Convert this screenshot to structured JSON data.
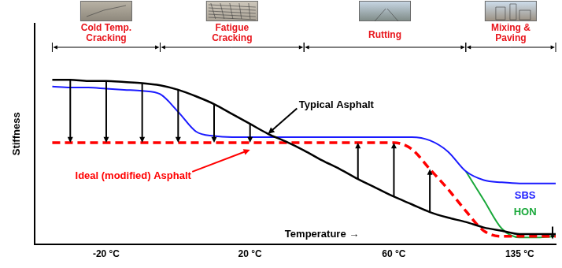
{
  "chart_data": {
    "type": "line",
    "x_label": "Temperature →",
    "y_label": "Stiffness",
    "categories": [
      null,
      null,
      null,
      null,
      "-20 °C",
      null,
      null,
      null,
      null,
      null,
      null,
      null,
      "20 °C",
      null,
      null,
      null,
      null,
      null,
      null,
      null,
      "60 °C",
      null,
      null,
      null,
      null,
      null,
      null,
      "135 °C",
      null,
      null
    ],
    "ylim": [
      0,
      10
    ],
    "tick_labels": "x",
    "grid": false,
    "regions": [
      {
        "label": "Cold Temp. Cracking",
        "from": 1,
        "to": 7
      },
      {
        "label": "Fatigue Cracking",
        "from": 7,
        "to": 15
      },
      {
        "label": "Rutting",
        "from": 15,
        "to": 24
      },
      {
        "label": "Mixing & Paving",
        "from": 24,
        "to": 29
      }
    ],
    "series": [
      {
        "name": "Typical Asphalt",
        "color": "#000000",
        "line_style": "solid",
        "marker": "none",
        "values": [
          null,
          7.45,
          7.45,
          7.4,
          7.4,
          7.35,
          7.3,
          7.2,
          7.0,
          6.7,
          6.35,
          5.9,
          5.45,
          5.0,
          4.65,
          4.25,
          3.8,
          3.4,
          2.95,
          2.55,
          2.15,
          1.8,
          1.45,
          1.2,
          1.0,
          0.75,
          0.6,
          0.45,
          0.45,
          0.45
        ]
      },
      {
        "name": "Ideal (modified) Asphalt",
        "color": "#ff0000",
        "line_style": "dashed",
        "marker": "none",
        "values": [
          null,
          4.6,
          4.6,
          4.6,
          4.6,
          4.6,
          4.6,
          4.6,
          4.6,
          4.6,
          4.6,
          4.6,
          4.6,
          4.6,
          4.6,
          4.6,
          4.6,
          4.6,
          4.6,
          4.6,
          4.6,
          4.3,
          3.4,
          2.5,
          1.5,
          0.6,
          0.35,
          0.35,
          0.35,
          0.35
        ]
      },
      {
        "name": "SBS",
        "color": "#1a1aff",
        "line_style": "solid",
        "marker": "none",
        "values": [
          null,
          7.15,
          7.1,
          7.1,
          7.05,
          7.0,
          6.95,
          6.8,
          6.0,
          5.1,
          4.9,
          4.85,
          4.85,
          4.85,
          4.85,
          4.85,
          4.85,
          4.85,
          4.85,
          4.85,
          4.85,
          4.85,
          4.7,
          4.2,
          3.3,
          2.9,
          2.8,
          2.75,
          2.75,
          2.75
        ]
      },
      {
        "name": "HON",
        "color": "#19a83a",
        "line_style": "solid",
        "marker": "none",
        "values": [
          null,
          null,
          null,
          null,
          null,
          null,
          null,
          null,
          null,
          null,
          null,
          null,
          null,
          null,
          null,
          null,
          null,
          null,
          null,
          null,
          null,
          null,
          null,
          null,
          3.3,
          2.0,
          0.7,
          0.3,
          0.3,
          0.35
        ]
      }
    ]
  }
}
